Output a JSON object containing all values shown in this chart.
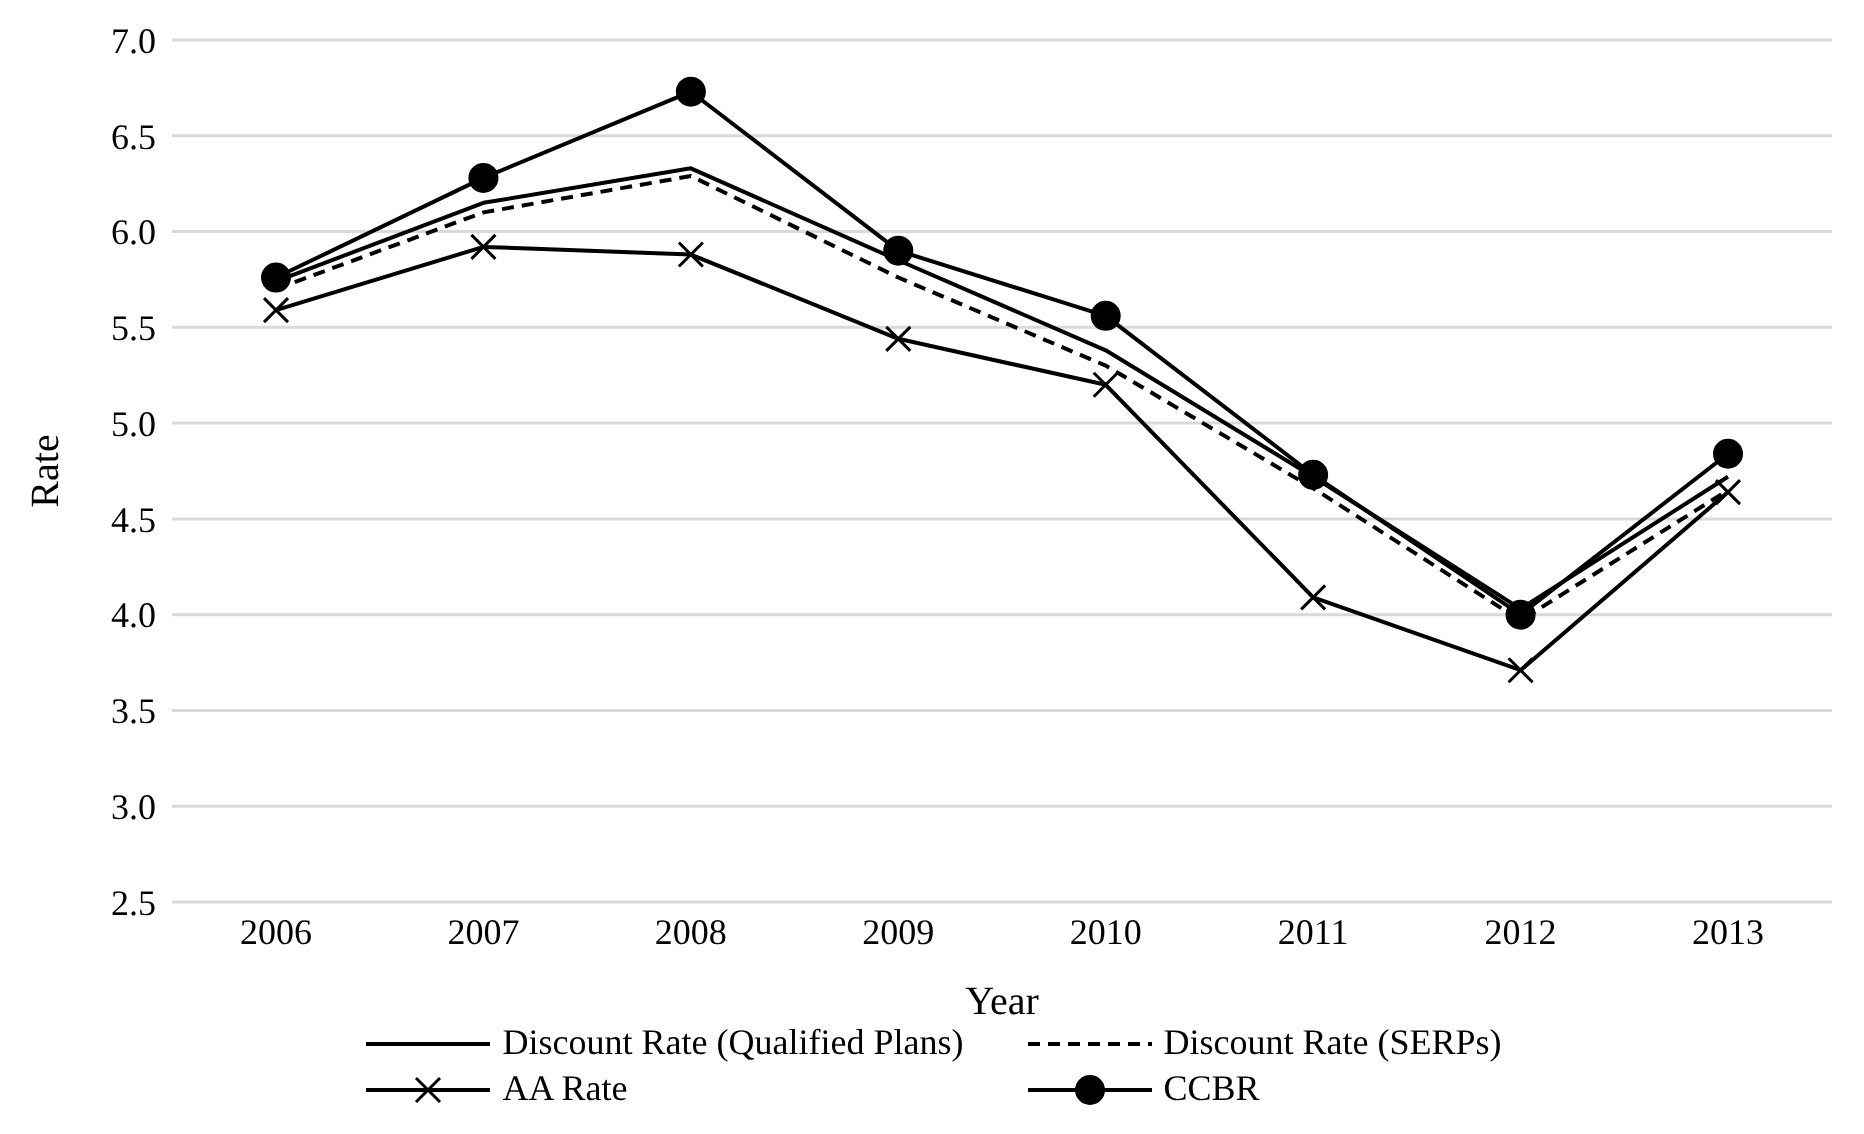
{
  "chart_data": {
    "type": "line",
    "xlabel": "Year",
    "ylabel": "Rate",
    "categories": [
      "2006",
      "2007",
      "2008",
      "2009",
      "2010",
      "2011",
      "2012",
      "2013"
    ],
    "series": [
      {
        "name": "Discount Rate (Qualified Plans)",
        "color": "#000000",
        "marker": "none",
        "line_style": "solid",
        "values": [
          5.74,
          6.15,
          6.33,
          5.85,
          5.38,
          4.72,
          4.03,
          4.72
        ]
      },
      {
        "name": "Discount Rate (SERPs)",
        "color": "#000000",
        "marker": "none",
        "line_style": "dashed",
        "values": [
          5.7,
          6.1,
          6.29,
          5.76,
          5.3,
          4.66,
          3.97,
          4.65
        ]
      },
      {
        "name": "AA Rate",
        "color": "#000000",
        "marker": "cross",
        "line_style": "solid",
        "values": [
          5.59,
          5.92,
          5.88,
          5.44,
          5.2,
          4.09,
          3.71,
          4.64
        ]
      },
      {
        "name": "CCBR",
        "color": "#000000",
        "marker": "circle",
        "line_style": "solid",
        "values": [
          5.76,
          6.28,
          6.73,
          5.9,
          5.56,
          4.73,
          4.0,
          4.84
        ]
      }
    ],
    "ylim": [
      2.5,
      7.0
    ],
    "yticks": [
      {
        "value": 2.5,
        "label": "2.5"
      },
      {
        "value": 3,
        "label": "3.0"
      },
      {
        "value": 3.5,
        "label": "3.5"
      },
      {
        "value": 4,
        "label": "4.0"
      },
      {
        "value": 4.5,
        "label": "4.5"
      },
      {
        "value": 5,
        "label": "5.0"
      },
      {
        "value": 5.5,
        "label": "5.5"
      },
      {
        "value": 6,
        "label": "6.0"
      },
      {
        "value": 6.5,
        "label": "6.5"
      },
      {
        "value": 7,
        "label": "7.0"
      }
    ],
    "grid": "y",
    "legend": "bottom"
  }
}
